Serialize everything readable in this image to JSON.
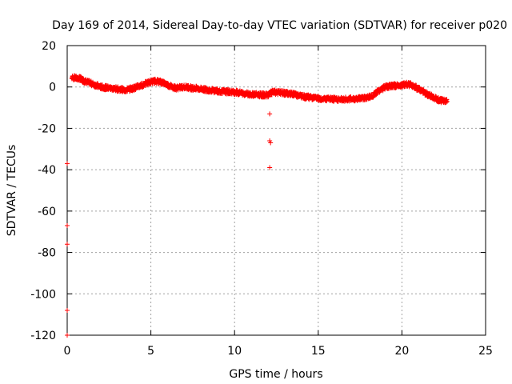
{
  "chart_data": {
    "type": "scatter",
    "title": "Day 169 of 2014, Sidereal Day-to-day VTEC variation (SDTVAR) for receiver p020",
    "xlabel": "GPS time / hours",
    "ylabel": "SDTVAR / TECUs",
    "xlim": [
      0,
      25
    ],
    "ylim": [
      -120,
      20
    ],
    "xticks": [
      0,
      5,
      10,
      15,
      20,
      25
    ],
    "yticks": [
      -120,
      -100,
      -80,
      -60,
      -40,
      -20,
      0,
      20
    ],
    "xtick_labels": [
      "0",
      "5",
      "10",
      "15",
      "20",
      "25"
    ],
    "ytick_labels": [
      "-120",
      "-100",
      "-80",
      "-60",
      "-40",
      "-20",
      "0",
      "20"
    ],
    "grid": true,
    "marker": "+",
    "marker_color": "#ff0000",
    "series": [
      {
        "name": "SDTVAR",
        "trend": {
          "x": [
            0.3,
            0.8,
            1.0,
            1.5,
            2.0,
            2.5,
            3.0,
            3.5,
            4.0,
            4.5,
            5.0,
            5.3,
            5.7,
            6.0,
            6.3,
            6.5,
            7.0,
            7.5,
            8.0,
            8.5,
            9.0,
            9.5,
            10.0,
            10.5,
            11.0,
            11.5,
            11.95,
            12.3,
            12.8,
            13.5,
            14.0,
            14.5,
            15.0,
            15.5,
            16.0,
            16.5,
            17.0,
            17.5,
            18.0,
            18.3,
            18.6,
            19.0,
            19.5,
            20.0,
            20.3,
            20.6,
            21.0,
            21.5,
            22.0,
            22.3,
            22.7
          ],
          "y": [
            4.5,
            4.0,
            3.0,
            1.5,
            0.0,
            -0.5,
            -1.0,
            -1.5,
            -0.5,
            1.0,
            2.5,
            2.8,
            2.2,
            1.0,
            0.0,
            -0.5,
            0.0,
            -0.5,
            -1.0,
            -1.5,
            -2.0,
            -2.3,
            -2.5,
            -3.0,
            -3.5,
            -3.8,
            -4.0,
            -2.5,
            -2.8,
            -3.5,
            -4.5,
            -5.0,
            -5.5,
            -5.8,
            -6.0,
            -6.0,
            -5.8,
            -5.5,
            -5.0,
            -4.0,
            -2.0,
            0.0,
            0.5,
            1.0,
            1.3,
            1.0,
            -1.0,
            -3.5,
            -5.5,
            -6.5,
            -7.0
          ]
        },
        "outliers": {
          "x": [
            0.0,
            0.0,
            0.0,
            0.0,
            0.0,
            12.1,
            12.1,
            12.15,
            12.1
          ],
          "y": [
            -37,
            -67,
            -76,
            -108,
            -120,
            -13,
            -26,
            -27,
            -39
          ]
        }
      }
    ]
  }
}
